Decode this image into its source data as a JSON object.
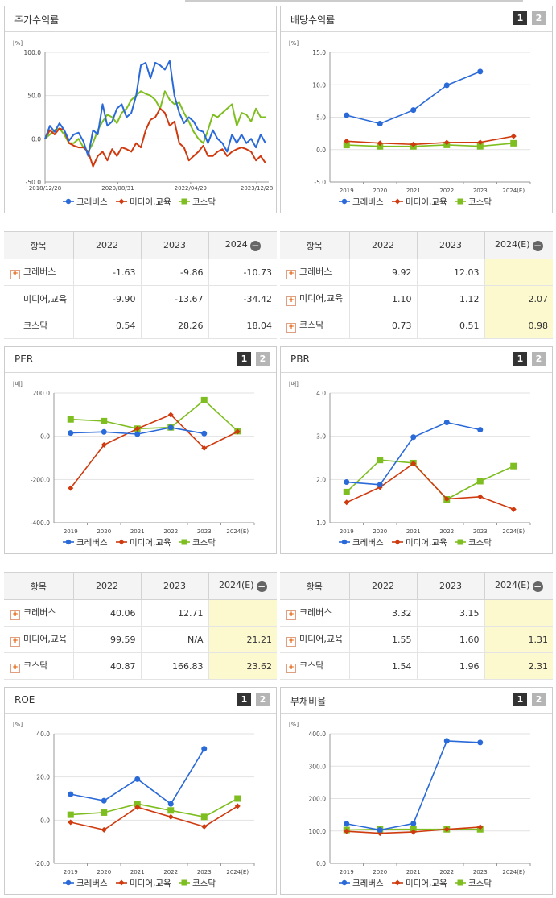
{
  "colors": {
    "s1": "#2a6ad8",
    "s2": "#cf3a0f",
    "s3": "#7ebe20",
    "grid": "#e2e2e2",
    "axis": "#999"
  },
  "legend": [
    "크레버스",
    "미디어,교육",
    "코스닥"
  ],
  "pager": [
    "1",
    "2"
  ],
  "panels": {
    "price": {
      "title": "주가수익률"
    },
    "div": {
      "title": "배당수익률"
    },
    "per": {
      "title": "PER"
    },
    "pbr": {
      "title": "PBR"
    },
    "roe": {
      "title": "ROE"
    },
    "debt": {
      "title": "부채비율"
    }
  },
  "tables": {
    "price": {
      "head": [
        "항목",
        "2022",
        "2023",
        "2024"
      ],
      "rows": [
        [
          "크레버스",
          "-1.63",
          "-9.86",
          "-10.73"
        ],
        [
          "미디어,교육",
          "-9.90",
          "-13.67",
          "-34.42"
        ],
        [
          "코스닥",
          "0.54",
          "28.26",
          "18.04"
        ]
      ]
    },
    "div": {
      "head": [
        "항목",
        "2022",
        "2023",
        "2024(E)"
      ],
      "rows": [
        [
          "크레버스",
          "9.92",
          "12.03",
          ""
        ],
        [
          "미디어,교육",
          "1.10",
          "1.12",
          "2.07"
        ],
        [
          "코스닥",
          "0.73",
          "0.51",
          "0.98"
        ]
      ]
    },
    "per": {
      "head": [
        "항목",
        "2022",
        "2023",
        "2024(E)"
      ],
      "rows": [
        [
          "크레버스",
          "40.06",
          "12.71",
          ""
        ],
        [
          "미디어,교육",
          "99.59",
          "N/A",
          "21.21"
        ],
        [
          "코스닥",
          "40.87",
          "166.83",
          "23.62"
        ]
      ]
    },
    "pbr": {
      "head": [
        "항목",
        "2022",
        "2023",
        "2024(E)"
      ],
      "rows": [
        [
          "크레버스",
          "3.32",
          "3.15",
          ""
        ],
        [
          "미디어,교육",
          "1.55",
          "1.60",
          "1.31"
        ],
        [
          "코스닥",
          "1.54",
          "1.96",
          "2.31"
        ]
      ]
    }
  },
  "chart_data": [
    {
      "id": "price",
      "type": "line",
      "unit": "[%]",
      "ylim": [
        -50,
        100
      ],
      "yticks": [
        "100.0",
        "50.0",
        "0.0",
        "-50.0"
      ],
      "xticks": [
        "2018/12/28",
        "2020/08/31",
        "2022/04/29",
        "2023/12/28"
      ],
      "series": [
        {
          "name": "크레버스",
          "values": [
            0,
            15,
            8,
            18,
            10,
            -2,
            5,
            7,
            -3,
            -20,
            10,
            5,
            40,
            15,
            20,
            35,
            40,
            25,
            30,
            50,
            85,
            88,
            70,
            88,
            85,
            80,
            90,
            50,
            30,
            18,
            25,
            20,
            10,
            8,
            -5,
            10,
            0,
            -5,
            -15,
            5,
            -5,
            5,
            -5,
            0,
            -10,
            5,
            -5
          ]
        },
        {
          "name": "미디어,교육",
          "values": [
            0,
            10,
            5,
            12,
            10,
            -5,
            -8,
            -10,
            -10,
            -15,
            -32,
            -20,
            -15,
            -25,
            -12,
            -20,
            -10,
            -12,
            -15,
            -5,
            -10,
            10,
            22,
            25,
            35,
            30,
            15,
            20,
            -5,
            -10,
            -25,
            -20,
            -15,
            -8,
            -20,
            -20,
            -15,
            -12,
            -20,
            -15,
            -12,
            -10,
            -12,
            -15,
            -25,
            -20,
            -28
          ]
        },
        {
          "name": "코스닥",
          "values": [
            0,
            5,
            10,
            12,
            5,
            -5,
            -5,
            0,
            -10,
            -15,
            -5,
            10,
            20,
            28,
            25,
            18,
            30,
            35,
            45,
            50,
            55,
            52,
            50,
            45,
            35,
            55,
            45,
            40,
            42,
            30,
            20,
            8,
            0,
            -5,
            10,
            28,
            25,
            30,
            35,
            40,
            15,
            30,
            28,
            20,
            35,
            25,
            25
          ]
        }
      ]
    },
    {
      "id": "div",
      "type": "line",
      "unit": "[%]",
      "ylim": [
        -5,
        15
      ],
      "yticks": [
        "15.0",
        "10.0",
        "5.0",
        "0.0",
        "-5.0"
      ],
      "xticks": [
        "2019",
        "2020",
        "2021",
        "2022",
        "2023",
        "2024(E)"
      ],
      "series": [
        {
          "name": "크레버스",
          "values": [
            5.3,
            4.0,
            6.1,
            9.92,
            12.03,
            null
          ]
        },
        {
          "name": "미디어,교육",
          "values": [
            1.3,
            1.0,
            0.8,
            1.1,
            1.12,
            2.07
          ]
        },
        {
          "name": "코스닥",
          "values": [
            0.7,
            0.5,
            0.5,
            0.73,
            0.51,
            0.98
          ]
        }
      ]
    },
    {
      "id": "per",
      "type": "line",
      "unit": "[배]",
      "ylim": [
        -400,
        200
      ],
      "yticks": [
        "200.0",
        "0.0",
        "-200.0",
        "-400.0"
      ],
      "xticks": [
        "2019",
        "2020",
        "2021",
        "2022",
        "2023",
        "2024(E)"
      ],
      "series": [
        {
          "name": "크레버스",
          "values": [
            15,
            20,
            10,
            40.06,
            12.71,
            null
          ]
        },
        {
          "name": "미디어,교육",
          "values": [
            -240,
            -40,
            35,
            99.59,
            -55,
            21.21
          ]
        },
        {
          "name": "코스닥",
          "values": [
            78,
            70,
            35,
            40.87,
            166.83,
            23.62
          ]
        }
      ]
    },
    {
      "id": "pbr",
      "type": "line",
      "unit": "[배]",
      "ylim": [
        1,
        4
      ],
      "yticks": [
        "4.0",
        "3.0",
        "2.0",
        "1.0"
      ],
      "xticks": [
        "2019",
        "2020",
        "2021",
        "2022",
        "2023",
        "2024(E)"
      ],
      "series": [
        {
          "name": "크레버스",
          "values": [
            1.94,
            1.88,
            2.98,
            3.32,
            3.15,
            null
          ]
        },
        {
          "name": "미디어,교육",
          "values": [
            1.47,
            1.82,
            2.37,
            1.55,
            1.6,
            1.31
          ]
        },
        {
          "name": "코스닥",
          "values": [
            1.71,
            2.45,
            2.38,
            1.54,
            1.96,
            2.31
          ]
        }
      ]
    },
    {
      "id": "roe",
      "type": "line",
      "unit": "[%]",
      "ylim": [
        -20,
        40
      ],
      "yticks": [
        "40.0",
        "20.0",
        "0.0",
        "-20.0"
      ],
      "xticks": [
        "2019",
        "2020",
        "2021",
        "2022",
        "2023",
        "2024(E)"
      ],
      "series": [
        {
          "name": "크레버스",
          "values": [
            12,
            9,
            19,
            7.5,
            33,
            null
          ]
        },
        {
          "name": "미디어,교육",
          "values": [
            -1,
            -4.5,
            6,
            1.5,
            -3,
            6.5
          ]
        },
        {
          "name": "코스닥",
          "values": [
            2.5,
            3.5,
            7.5,
            4.5,
            1.5,
            10
          ]
        }
      ]
    },
    {
      "id": "debt",
      "type": "line",
      "unit": "[%]",
      "ylim": [
        0,
        400
      ],
      "yticks": [
        "400.0",
        "300.0",
        "200.0",
        "100.0",
        "0.0"
      ],
      "xticks": [
        "2019",
        "2020",
        "2021",
        "2022",
        "2023",
        "2024(E)"
      ],
      "series": [
        {
          "name": "크레버스",
          "values": [
            122,
            103,
            123,
            378,
            373,
            null
          ]
        },
        {
          "name": "미디어,교육",
          "values": [
            99,
            93,
            97,
            105,
            112,
            null
          ]
        },
        {
          "name": "코스닥",
          "values": [
            103,
            105,
            105,
            105,
            105,
            null
          ]
        }
      ]
    }
  ]
}
